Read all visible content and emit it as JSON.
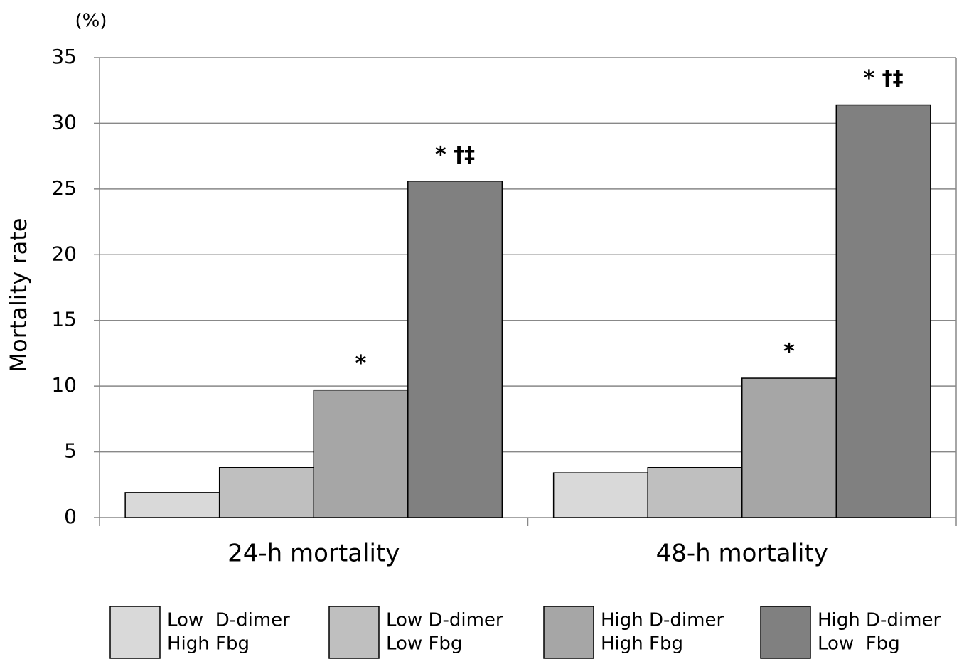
{
  "chart_data": {
    "type": "bar",
    "y_unit": "(%)",
    "y_label": "Mortality rate",
    "categories": [
      "24-h mortality",
      "48-h mortality"
    ],
    "series": [
      {
        "name": [
          "Low  D-dimer",
          "High Fbg"
        ],
        "color": "#d9d9d9",
        "values": [
          1.9,
          3.4
        ]
      },
      {
        "name": [
          "Low D-dimer",
          "Low Fbg"
        ],
        "color": "#bfbfbf",
        "values": [
          3.8,
          3.8
        ]
      },
      {
        "name": [
          "High D-dimer",
          "High Fbg"
        ],
        "color": "#a6a6a6",
        "values": [
          9.7,
          10.6
        ],
        "annotations": [
          "*",
          "*"
        ]
      },
      {
        "name": [
          "High D-dimer",
          "Low  Fbg"
        ],
        "color": "#808080",
        "values": [
          25.6,
          31.4
        ],
        "annotations": [
          "* †‡",
          "* †‡"
        ]
      }
    ],
    "ylim": [
      0,
      35
    ],
    "yticks": [
      0,
      5,
      10,
      15,
      20,
      25,
      30,
      35
    ],
    "grid": true
  }
}
